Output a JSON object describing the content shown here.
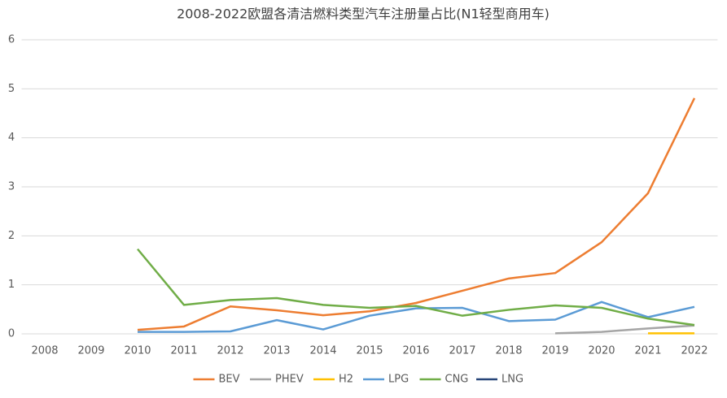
{
  "chart_data": {
    "type": "line",
    "title": "2008-2022欧盟各清洁燃料类型汽车注册量占比(N1轻型商用车)",
    "categories": [
      "2008",
      "2009",
      "2010",
      "2011",
      "2012",
      "2013",
      "2014",
      "2015",
      "2016",
      "2017",
      "2018",
      "2019",
      "2020",
      "2021",
      "2022"
    ],
    "series": [
      {
        "name": "BEV",
        "color": "#ed7d31",
        "values": [
          null,
          null,
          0.08,
          0.15,
          0.56,
          0.48,
          0.38,
          0.46,
          0.63,
          0.88,
          1.13,
          1.24,
          1.87,
          2.87,
          4.81
        ]
      },
      {
        "name": "PHEV",
        "color": "#a5a5a5",
        "values": [
          null,
          null,
          null,
          null,
          null,
          null,
          null,
          null,
          null,
          null,
          null,
          0.01,
          0.04,
          0.11,
          0.17
        ]
      },
      {
        "name": "H2",
        "color": "#ffc000",
        "values": [
          null,
          null,
          null,
          null,
          null,
          null,
          null,
          null,
          null,
          null,
          null,
          null,
          null,
          0.01,
          0.01
        ]
      },
      {
        "name": "LPG",
        "color": "#5b9bd5",
        "values": [
          null,
          null,
          0.04,
          0.04,
          0.05,
          0.28,
          0.09,
          0.37,
          0.52,
          0.53,
          0.26,
          0.29,
          0.65,
          0.34,
          0.55
        ]
      },
      {
        "name": "CNG",
        "color": "#70ad47",
        "values": [
          null,
          null,
          1.73,
          0.59,
          0.69,
          0.73,
          0.59,
          0.53,
          0.57,
          0.37,
          0.49,
          0.58,
          0.53,
          0.31,
          0.18
        ]
      },
      {
        "name": "LNG",
        "color": "#264478",
        "values": [
          null,
          null,
          null,
          null,
          null,
          null,
          null,
          null,
          null,
          null,
          null,
          null,
          null,
          null,
          null
        ]
      }
    ],
    "ylim": [
      0,
      6
    ],
    "yticks": [
      0,
      1,
      2,
      3,
      4,
      5,
      6
    ],
    "grid": true,
    "legend": "bottom"
  }
}
